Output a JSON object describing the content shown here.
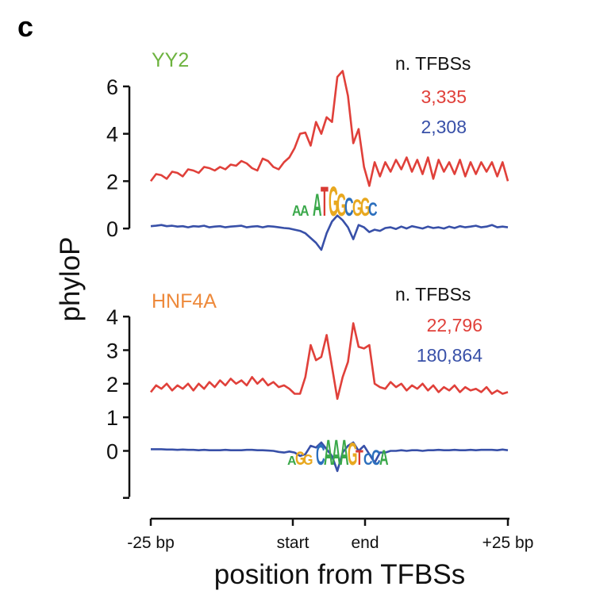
{
  "panel_letter": "c",
  "colors": {
    "red": "#e0403a",
    "blue": "#3850a8",
    "yy2": "#6db33f",
    "hnf4a": "#ee8a3c"
  },
  "chart_data": {
    "type": "line",
    "xlabel": "position from TFBSs",
    "ylabel": "phyloP",
    "x_tick_labels": [
      "-25 bp",
      "start",
      "end",
      "+25 bp"
    ],
    "grid": false,
    "panels": [
      {
        "title": "YY2",
        "ylim": [
          -1.0,
          6.3
        ],
        "y_ticks": [
          0,
          2,
          4,
          6
        ],
        "legend_header": "n. TFBSs",
        "motif": "AAxATGGCGGC",
        "series": [
          {
            "count": "3,335",
            "color": "red",
            "values": [
              2.0,
              2.3,
              2.25,
              2.1,
              2.4,
              2.35,
              2.2,
              2.5,
              2.45,
              2.35,
              2.6,
              2.55,
              2.45,
              2.6,
              2.5,
              2.7,
              2.65,
              2.85,
              2.75,
              2.55,
              2.45,
              2.95,
              2.85,
              2.6,
              2.5,
              2.8,
              3.0,
              3.4,
              4.0,
              4.05,
              3.5,
              4.5,
              4.0,
              4.7,
              4.5,
              6.4,
              6.65,
              5.6,
              3.6,
              4.2,
              2.6,
              1.8,
              2.8,
              2.2,
              2.8,
              2.4,
              2.9,
              2.5,
              3.0,
              2.4,
              2.9,
              2.3,
              3.0,
              2.1,
              2.9,
              2.4,
              2.8,
              2.3,
              2.9,
              2.2,
              2.8,
              2.3,
              2.8,
              2.4,
              2.8,
              2.2,
              2.8,
              2.0
            ]
          },
          {
            "count": "2,308",
            "color": "blue",
            "values": [
              0.1,
              0.12,
              0.15,
              0.1,
              0.12,
              0.08,
              0.1,
              0.05,
              0.1,
              0.08,
              0.12,
              0.05,
              0.08,
              0.1,
              0.05,
              0.08,
              0.1,
              0.12,
              0.05,
              0.08,
              0.1,
              0.05,
              0.1,
              0.08,
              0.05,
              0.02,
              0.0,
              -0.05,
              -0.1,
              -0.2,
              -0.4,
              -0.6,
              -0.9,
              -0.2,
              0.3,
              0.55,
              0.35,
              0.05,
              -0.45,
              0.15,
              0.05,
              -0.15,
              -0.05,
              -0.1,
              0.02,
              0.05,
              -0.02,
              0.08,
              0.0,
              0.1,
              0.05,
              0.0,
              0.08,
              0.02,
              0.05,
              0.0,
              0.08,
              0.02,
              0.1,
              0.05,
              0.08,
              0.12,
              0.05,
              0.08,
              0.15,
              0.05,
              0.08,
              0.05
            ]
          }
        ]
      },
      {
        "title": "HNF4A",
        "ylim": [
          -1.5,
          4.5
        ],
        "y_ticks": [
          0,
          1,
          2,
          3,
          4
        ],
        "legend_header": "n. TFBSs",
        "motif": "AGGxCAAAGTCCA",
        "series": [
          {
            "count": "22,796",
            "color": "red",
            "values": [
              1.75,
              1.95,
              1.85,
              2.0,
              1.8,
              1.95,
              1.85,
              2.0,
              1.8,
              2.0,
              1.85,
              2.05,
              1.9,
              2.1,
              1.95,
              2.15,
              2.0,
              2.1,
              1.95,
              2.2,
              2.0,
              2.15,
              1.95,
              2.05,
              1.9,
              1.95,
              1.85,
              1.7,
              1.7,
              2.2,
              3.15,
              2.7,
              2.8,
              3.45,
              2.5,
              1.55,
              2.2,
              2.65,
              3.8,
              3.1,
              3.05,
              3.15,
              2.0,
              1.9,
              1.85,
              2.05,
              1.9,
              2.0,
              1.8,
              1.95,
              1.85,
              2.0,
              1.8,
              1.95,
              1.75,
              1.9,
              1.8,
              1.95,
              1.75,
              1.9,
              1.8,
              1.85,
              1.75,
              1.9,
              1.7,
              1.8,
              1.7,
              1.75
            ]
          },
          {
            "count": "180,864",
            "color": "blue",
            "values": [
              0.05,
              0.05,
              0.05,
              0.04,
              0.04,
              0.03,
              0.04,
              0.03,
              0.03,
              0.02,
              0.03,
              0.02,
              0.02,
              0.02,
              0.03,
              0.02,
              0.02,
              0.02,
              0.03,
              0.03,
              0.02,
              0.02,
              0.01,
              0.0,
              -0.03,
              -0.05,
              -0.02,
              -0.05,
              -0.15,
              -0.1,
              0.15,
              0.1,
              0.25,
              0.05,
              -0.15,
              -0.6,
              -0.05,
              0.15,
              0.25,
              0.0,
              0.15,
              -0.1,
              -0.35,
              -0.05,
              -0.05,
              0.0,
              0.0,
              0.02,
              0.0,
              0.02,
              0.02,
              0.0,
              0.02,
              0.02,
              0.03,
              0.02,
              0.02,
              0.03,
              0.02,
              0.02,
              0.03,
              0.02,
              0.03,
              0.03,
              0.03,
              0.02,
              0.04,
              0.02
            ]
          }
        ]
      }
    ]
  }
}
